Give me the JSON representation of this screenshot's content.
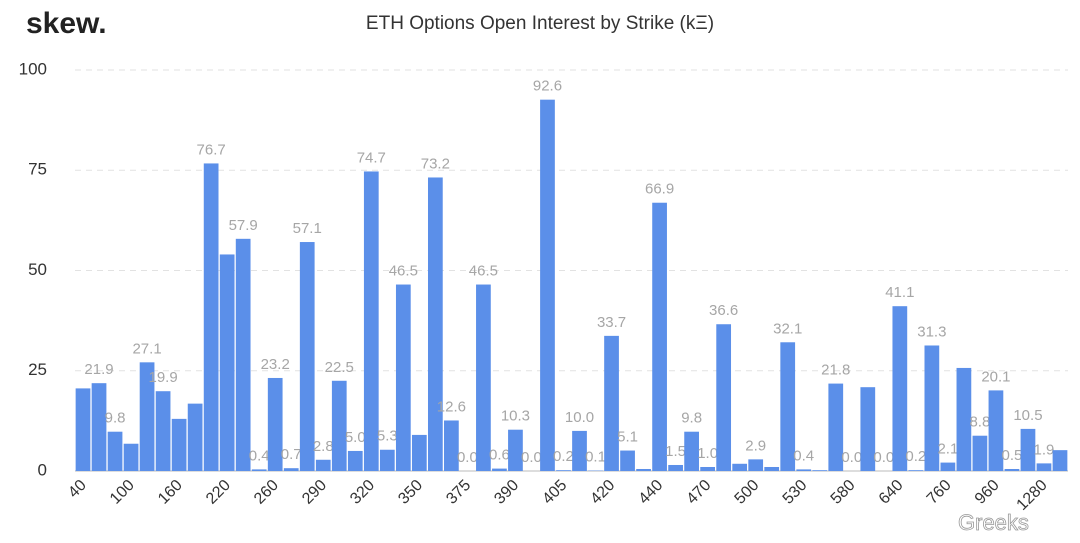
{
  "chart_data": {
    "type": "bar",
    "logo": "skew.",
    "title": "ETH Options Open Interest by Strike (kΞ)",
    "watermark": "Greeks",
    "color": "#5b8fe9",
    "ylim": [
      0,
      100
    ],
    "yticks": [
      0,
      25,
      50,
      75,
      100
    ],
    "grid": true,
    "categories": [
      "40",
      null,
      null,
      "100",
      null,
      null,
      "160",
      null,
      null,
      "220",
      null,
      null,
      "260",
      null,
      null,
      "290",
      null,
      null,
      "320",
      null,
      null,
      "350",
      null,
      null,
      "375",
      null,
      null,
      "390",
      null,
      null,
      "405",
      null,
      null,
      "420",
      null,
      null,
      "440",
      null,
      null,
      "470",
      null,
      null,
      "500",
      null,
      null,
      "530",
      null,
      null,
      "580",
      null,
      null,
      "640",
      null,
      null,
      "760",
      null,
      null,
      "960",
      null,
      null,
      "1280",
      null
    ],
    "values": [
      20.6,
      21.9,
      9.8,
      6.8,
      27.1,
      19.9,
      13.0,
      16.8,
      76.7,
      54.0,
      57.9,
      0.4,
      23.2,
      0.7,
      57.1,
      2.8,
      22.5,
      5.0,
      74.7,
      5.3,
      46.5,
      9.0,
      73.2,
      12.6,
      0.0,
      46.5,
      0.6,
      10.3,
      0.0,
      92.6,
      0.2,
      10.0,
      0.1,
      33.7,
      5.1,
      0.5,
      66.9,
      1.5,
      9.8,
      1.0,
      36.6,
      1.8,
      2.9,
      1.0,
      32.1,
      0.4,
      0.2,
      21.8,
      0.0,
      20.9,
      0.0,
      41.1,
      0.2,
      31.3,
      2.1,
      25.7,
      8.8,
      20.1,
      0.5,
      10.5,
      1.9,
      5.2
    ],
    "value_labels": [
      null,
      "21.9",
      "9.8",
      null,
      "27.1",
      "19.9",
      null,
      null,
      "76.7",
      null,
      "57.9",
      "0.4",
      "23.2",
      "0.7",
      "57.1",
      "2.8",
      "22.5",
      "5.0",
      "74.7",
      "5.3",
      "46.5",
      null,
      "73.2",
      "12.6",
      "0.0",
      "46.5",
      "0.6",
      "10.3",
      "0.0",
      "92.6",
      "0.2",
      "10.0",
      "0.1",
      "33.7",
      "5.1",
      null,
      "66.9",
      "1.5",
      "9.8",
      "1.0",
      "36.6",
      null,
      "2.9",
      null,
      "32.1",
      "0.4",
      null,
      "21.8",
      "0.0",
      null,
      "0.0",
      "41.1",
      "0.2",
      "31.3",
      "2.1",
      null,
      "8.8",
      "20.1",
      "0.5",
      "10.5",
      "1.9",
      null
    ]
  }
}
